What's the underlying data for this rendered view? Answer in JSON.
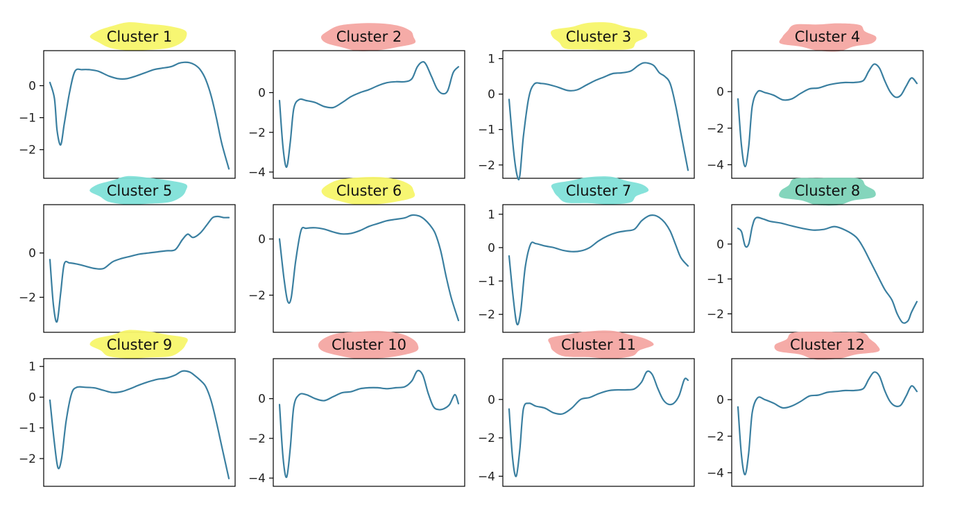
{
  "colors": {
    "line": "#3a7fa0",
    "highlight_yellow": "#f7f56a",
    "highlight_red": "#f4a6a2",
    "highlight_cyan": "#7fe0d8",
    "highlight_green": "#7dd3b8"
  },
  "chart_data": [
    {
      "type": "line",
      "title": "Cluster 1",
      "highlight": "yellow",
      "ylim": [
        -2.7,
        0.9
      ],
      "yticks": [
        0,
        -1,
        -2
      ],
      "grid": false,
      "x": [
        0,
        0.025,
        0.04,
        0.06,
        0.08,
        0.11,
        0.14,
        0.18,
        0.22,
        0.27,
        0.33,
        0.38,
        0.43,
        0.48,
        0.53,
        0.58,
        0.63,
        0.68,
        0.72,
        0.75,
        0.78,
        0.81,
        0.84,
        0.87,
        0.9,
        0.93,
        0.96,
        1.0
      ],
      "y": [
        0.1,
        -0.4,
        -1.4,
        -1.85,
        -1.2,
        -0.2,
        0.45,
        0.5,
        0.5,
        0.45,
        0.3,
        0.22,
        0.22,
        0.3,
        0.4,
        0.5,
        0.55,
        0.6,
        0.7,
        0.73,
        0.72,
        0.65,
        0.5,
        0.2,
        -0.3,
        -1.0,
        -1.8,
        -2.6
      ]
    },
    {
      "type": "line",
      "title": "Cluster 2",
      "highlight": "red",
      "ylim": [
        -4,
        1.8
      ],
      "yticks": [
        0,
        -2,
        -4
      ],
      "grid": false,
      "x": [
        0,
        0.02,
        0.04,
        0.06,
        0.08,
        0.11,
        0.15,
        0.2,
        0.25,
        0.3,
        0.35,
        0.4,
        0.45,
        0.5,
        0.55,
        0.6,
        0.65,
        0.7,
        0.74,
        0.77,
        0.8,
        0.82,
        0.85,
        0.88,
        0.91,
        0.94,
        0.97,
        1.0
      ],
      "y": [
        -0.4,
        -2.8,
        -3.75,
        -2.5,
        -0.8,
        -0.35,
        -0.4,
        -0.5,
        -0.7,
        -0.75,
        -0.5,
        -0.2,
        0.0,
        0.15,
        0.35,
        0.5,
        0.55,
        0.55,
        0.7,
        1.3,
        1.55,
        1.4,
        0.8,
        0.2,
        -0.05,
        0.1,
        1.0,
        1.3
      ]
    },
    {
      "type": "line",
      "title": "Cluster 3",
      "highlight": "yellow",
      "ylim": [
        -2.2,
        1.05
      ],
      "yticks": [
        1,
        0,
        -1,
        -2
      ],
      "grid": false,
      "x": [
        0,
        0.025,
        0.045,
        0.06,
        0.08,
        0.11,
        0.14,
        0.18,
        0.22,
        0.27,
        0.33,
        0.38,
        0.43,
        0.48,
        0.53,
        0.58,
        0.63,
        0.68,
        0.72,
        0.75,
        0.78,
        0.81,
        0.84,
        0.87,
        0.9,
        0.93,
        0.96,
        1.0
      ],
      "y": [
        -0.15,
        -1.6,
        -2.3,
        -2.3,
        -1.2,
        -0.1,
        0.28,
        0.3,
        0.27,
        0.2,
        0.1,
        0.12,
        0.25,
        0.38,
        0.48,
        0.58,
        0.6,
        0.65,
        0.8,
        0.88,
        0.87,
        0.8,
        0.6,
        0.5,
        0.3,
        -0.3,
        -1.1,
        -2.15
      ]
    },
    {
      "type": "line",
      "title": "Cluster 4",
      "highlight": "red",
      "ylim": [
        -4.4,
        1.9
      ],
      "yticks": [
        0,
        -2,
        -4
      ],
      "grid": false,
      "x": [
        0,
        0.02,
        0.04,
        0.06,
        0.08,
        0.11,
        0.15,
        0.2,
        0.25,
        0.3,
        0.35,
        0.4,
        0.45,
        0.5,
        0.55,
        0.6,
        0.65,
        0.7,
        0.73,
        0.76,
        0.79,
        0.82,
        0.85,
        0.88,
        0.91,
        0.94,
        0.97,
        1.0
      ],
      "y": [
        -0.4,
        -3.0,
        -4.1,
        -3.0,
        -0.8,
        0.0,
        -0.05,
        -0.2,
        -0.45,
        -0.4,
        -0.1,
        0.15,
        0.2,
        0.35,
        0.45,
        0.5,
        0.5,
        0.6,
        1.1,
        1.5,
        1.3,
        0.6,
        0.0,
        -0.3,
        -0.2,
        0.3,
        0.75,
        0.45
      ]
    },
    {
      "type": "line",
      "title": "Cluster 5",
      "highlight": "cyan",
      "ylim": [
        -3.3,
        1.9
      ],
      "yticks": [
        0,
        -2
      ],
      "grid": false,
      "x": [
        0,
        0.02,
        0.04,
        0.06,
        0.08,
        0.11,
        0.15,
        0.2,
        0.25,
        0.3,
        0.35,
        0.4,
        0.45,
        0.5,
        0.55,
        0.6,
        0.65,
        0.7,
        0.74,
        0.77,
        0.8,
        0.84,
        0.88,
        0.91,
        0.94,
        0.97,
        1.0
      ],
      "y": [
        -0.3,
        -2.4,
        -3.1,
        -1.8,
        -0.5,
        -0.45,
        -0.5,
        -0.6,
        -0.7,
        -0.7,
        -0.4,
        -0.25,
        -0.15,
        -0.05,
        0.0,
        0.05,
        0.1,
        0.15,
        0.6,
        0.85,
        0.7,
        0.9,
        1.3,
        1.6,
        1.65,
        1.6,
        1.6
      ]
    },
    {
      "type": "line",
      "title": "Cluster 6",
      "highlight": "yellow",
      "ylim": [
        -3.1,
        1.0
      ],
      "yticks": [
        0,
        -2
      ],
      "grid": false,
      "x": [
        0,
        0.025,
        0.045,
        0.065,
        0.09,
        0.12,
        0.15,
        0.2,
        0.25,
        0.3,
        0.35,
        0.4,
        0.45,
        0.5,
        0.55,
        0.6,
        0.65,
        0.7,
        0.74,
        0.78,
        0.81,
        0.84,
        0.87,
        0.9,
        0.93,
        0.96,
        1.0
      ],
      "y": [
        0.0,
        -1.4,
        -2.2,
        -2.1,
        -0.8,
        0.3,
        0.38,
        0.4,
        0.35,
        0.25,
        0.18,
        0.2,
        0.3,
        0.45,
        0.55,
        0.65,
        0.7,
        0.75,
        0.85,
        0.82,
        0.7,
        0.5,
        0.2,
        -0.4,
        -1.3,
        -2.1,
        -2.9
      ]
    },
    {
      "type": "line",
      "title": "Cluster 7",
      "highlight": "cyan",
      "ylim": [
        -2.35,
        1.1
      ],
      "yticks": [
        1,
        0,
        -1,
        -2
      ],
      "grid": false,
      "x": [
        0,
        0.025,
        0.045,
        0.065,
        0.09,
        0.12,
        0.15,
        0.2,
        0.25,
        0.3,
        0.35,
        0.4,
        0.45,
        0.5,
        0.55,
        0.6,
        0.65,
        0.7,
        0.74,
        0.78,
        0.81,
        0.84,
        0.87,
        0.9,
        0.93,
        0.96,
        1.0
      ],
      "y": [
        -0.25,
        -1.6,
        -2.3,
        -1.9,
        -0.6,
        0.1,
        0.12,
        0.05,
        0.0,
        -0.08,
        -0.12,
        -0.1,
        0.0,
        0.2,
        0.35,
        0.45,
        0.5,
        0.55,
        0.8,
        0.95,
        0.97,
        0.9,
        0.75,
        0.5,
        0.1,
        -0.3,
        -0.55
      ]
    },
    {
      "type": "line",
      "title": "Cluster 8",
      "highlight": "green",
      "ylim": [
        -2.35,
        0.95
      ],
      "yticks": [
        0,
        -1,
        -2
      ],
      "grid": false,
      "x": [
        0,
        0.02,
        0.04,
        0.06,
        0.08,
        0.1,
        0.14,
        0.18,
        0.24,
        0.3,
        0.36,
        0.42,
        0.48,
        0.54,
        0.6,
        0.66,
        0.7,
        0.74,
        0.78,
        0.82,
        0.86,
        0.89,
        0.92,
        0.95,
        0.97,
        1.0
      ],
      "y": [
        0.45,
        0.35,
        -0.05,
        0.0,
        0.5,
        0.75,
        0.72,
        0.65,
        0.6,
        0.52,
        0.45,
        0.4,
        0.42,
        0.5,
        0.4,
        0.2,
        -0.1,
        -0.5,
        -0.9,
        -1.3,
        -1.6,
        -2.0,
        -2.25,
        -2.2,
        -1.95,
        -1.65
      ]
    },
    {
      "type": "line",
      "title": "Cluster 9",
      "highlight": "yellow",
      "ylim": [
        -2.7,
        1.05
      ],
      "yticks": [
        1,
        0,
        -1,
        -2
      ],
      "grid": false,
      "x": [
        0,
        0.025,
        0.045,
        0.065,
        0.09,
        0.12,
        0.15,
        0.2,
        0.25,
        0.3,
        0.35,
        0.4,
        0.45,
        0.5,
        0.55,
        0.6,
        0.65,
        0.7,
        0.74,
        0.78,
        0.81,
        0.84,
        0.87,
        0.9,
        0.93,
        0.96,
        1.0
      ],
      "y": [
        -0.1,
        -1.5,
        -2.3,
        -2.0,
        -0.8,
        0.1,
        0.32,
        0.32,
        0.3,
        0.22,
        0.15,
        0.18,
        0.28,
        0.4,
        0.5,
        0.58,
        0.62,
        0.72,
        0.85,
        0.82,
        0.7,
        0.55,
        0.35,
        -0.1,
        -0.8,
        -1.6,
        -2.65
      ]
    },
    {
      "type": "line",
      "title": "Cluster 10",
      "highlight": "red",
      "ylim": [
        -4.1,
        1.7
      ],
      "yticks": [
        0,
        -2,
        -4
      ],
      "grid": false,
      "x": [
        0,
        0.02,
        0.04,
        0.06,
        0.08,
        0.11,
        0.15,
        0.2,
        0.25,
        0.3,
        0.35,
        0.4,
        0.45,
        0.5,
        0.55,
        0.6,
        0.65,
        0.7,
        0.74,
        0.77,
        0.8,
        0.83,
        0.86,
        0.89,
        0.92,
        0.95,
        0.98,
        1.0
      ],
      "y": [
        -0.3,
        -3.0,
        -3.95,
        -2.5,
        -0.4,
        0.2,
        0.2,
        0.0,
        -0.1,
        0.1,
        0.3,
        0.35,
        0.5,
        0.55,
        0.55,
        0.5,
        0.55,
        0.6,
        0.9,
        1.4,
        1.2,
        0.3,
        -0.4,
        -0.55,
        -0.5,
        -0.3,
        0.2,
        -0.25
      ]
    },
    {
      "type": "line",
      "title": "Cluster 11",
      "highlight": "red",
      "ylim": [
        -4.2,
        1.8
      ],
      "yticks": [
        0,
        -2,
        -4
      ],
      "grid": false,
      "x": [
        0,
        0.02,
        0.04,
        0.06,
        0.08,
        0.11,
        0.15,
        0.2,
        0.25,
        0.3,
        0.35,
        0.4,
        0.45,
        0.5,
        0.55,
        0.6,
        0.65,
        0.7,
        0.74,
        0.77,
        0.8,
        0.83,
        0.86,
        0.89,
        0.92,
        0.95,
        0.98,
        1.0
      ],
      "y": [
        -0.5,
        -3.1,
        -4.0,
        -2.6,
        -0.5,
        -0.2,
        -0.35,
        -0.45,
        -0.7,
        -0.75,
        -0.45,
        0.0,
        0.1,
        0.3,
        0.45,
        0.5,
        0.5,
        0.55,
        0.9,
        1.45,
        1.3,
        0.6,
        0.0,
        -0.25,
        -0.2,
        0.2,
        1.05,
        1.0
      ]
    },
    {
      "type": "line",
      "title": "Cluster 12",
      "highlight": "red",
      "ylim": [
        -4.4,
        1.9
      ],
      "yticks": [
        0,
        -2,
        -4
      ],
      "grid": false,
      "x": [
        0,
        0.02,
        0.04,
        0.06,
        0.08,
        0.11,
        0.15,
        0.2,
        0.25,
        0.3,
        0.35,
        0.4,
        0.45,
        0.5,
        0.55,
        0.6,
        0.65,
        0.7,
        0.73,
        0.76,
        0.79,
        0.82,
        0.85,
        0.88,
        0.91,
        0.94,
        0.97,
        1.0
      ],
      "y": [
        -0.4,
        -3.1,
        -4.1,
        -2.9,
        -0.7,
        0.1,
        0.0,
        -0.2,
        -0.45,
        -0.35,
        -0.1,
        0.2,
        0.25,
        0.4,
        0.45,
        0.5,
        0.5,
        0.6,
        1.1,
        1.5,
        1.3,
        0.5,
        -0.1,
        -0.35,
        -0.3,
        0.2,
        0.75,
        0.45
      ]
    }
  ]
}
